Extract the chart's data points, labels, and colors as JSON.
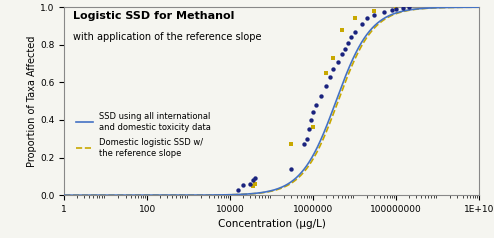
{
  "title_bold": "Logistic SSD for Methanol",
  "title_sub": "with application of the reference slope",
  "xlabel": "Concentration (μg/L)",
  "ylabel": "Proportion of Taxa Affected",
  "ssd_curve_color": "#4472C4",
  "ssd_curve_lw": 1.2,
  "domestic_curve_color": "#C8A800",
  "domestic_curve_lw": 1.2,
  "scatter_int_color": "#1a237e",
  "scatter_dom_color": "#C8A800",
  "legend_line1": "SSD using all international\nand domestic toxicity data",
  "legend_line2": "Domestic logistic SSD w/\nthe reference slope",
  "int_points_x": [
    15000,
    20000,
    30000,
    35000,
    40000,
    300000,
    600000,
    700000,
    800000,
    900000,
    1000000,
    1200000,
    1500000,
    2000000,
    2500000,
    3000000,
    4000000,
    5000000,
    6000000,
    7000000,
    8000000,
    10000000,
    15000000,
    20000000,
    30000000,
    50000000,
    80000000,
    100000000,
    150000000,
    200000000
  ],
  "int_points_y": [
    0.03,
    0.055,
    0.06,
    0.08,
    0.09,
    0.14,
    0.27,
    0.3,
    0.35,
    0.4,
    0.44,
    0.48,
    0.53,
    0.58,
    0.63,
    0.67,
    0.71,
    0.75,
    0.78,
    0.81,
    0.84,
    0.87,
    0.91,
    0.94,
    0.96,
    0.975,
    0.985,
    0.99,
    0.995,
    1.0
  ],
  "dom_points_x": [
    35000,
    40000,
    300000,
    1000000,
    2000000,
    3000000,
    5000000,
    10000000,
    30000000,
    100000000
  ],
  "dom_points_y": [
    0.05,
    0.06,
    0.27,
    0.36,
    0.65,
    0.73,
    0.88,
    0.94,
    0.98,
    1.0
  ],
  "mu_int": 6.55,
  "s_int": 0.42,
  "mu_dom": 6.6,
  "s_dom": 0.42,
  "xticks": [
    1,
    100,
    10000,
    1000000,
    100000000,
    10000000000
  ],
  "xtick_labels": [
    "1",
    "100",
    "10000",
    "1000000",
    "100000000",
    "1E+10"
  ],
  "yticks": [
    0.0,
    0.2,
    0.4,
    0.6,
    0.8,
    1.0
  ],
  "xlim": [
    1,
    10000000000
  ],
  "ylim": [
    0.0,
    1.0
  ],
  "bg_color": "#f5f5f0"
}
